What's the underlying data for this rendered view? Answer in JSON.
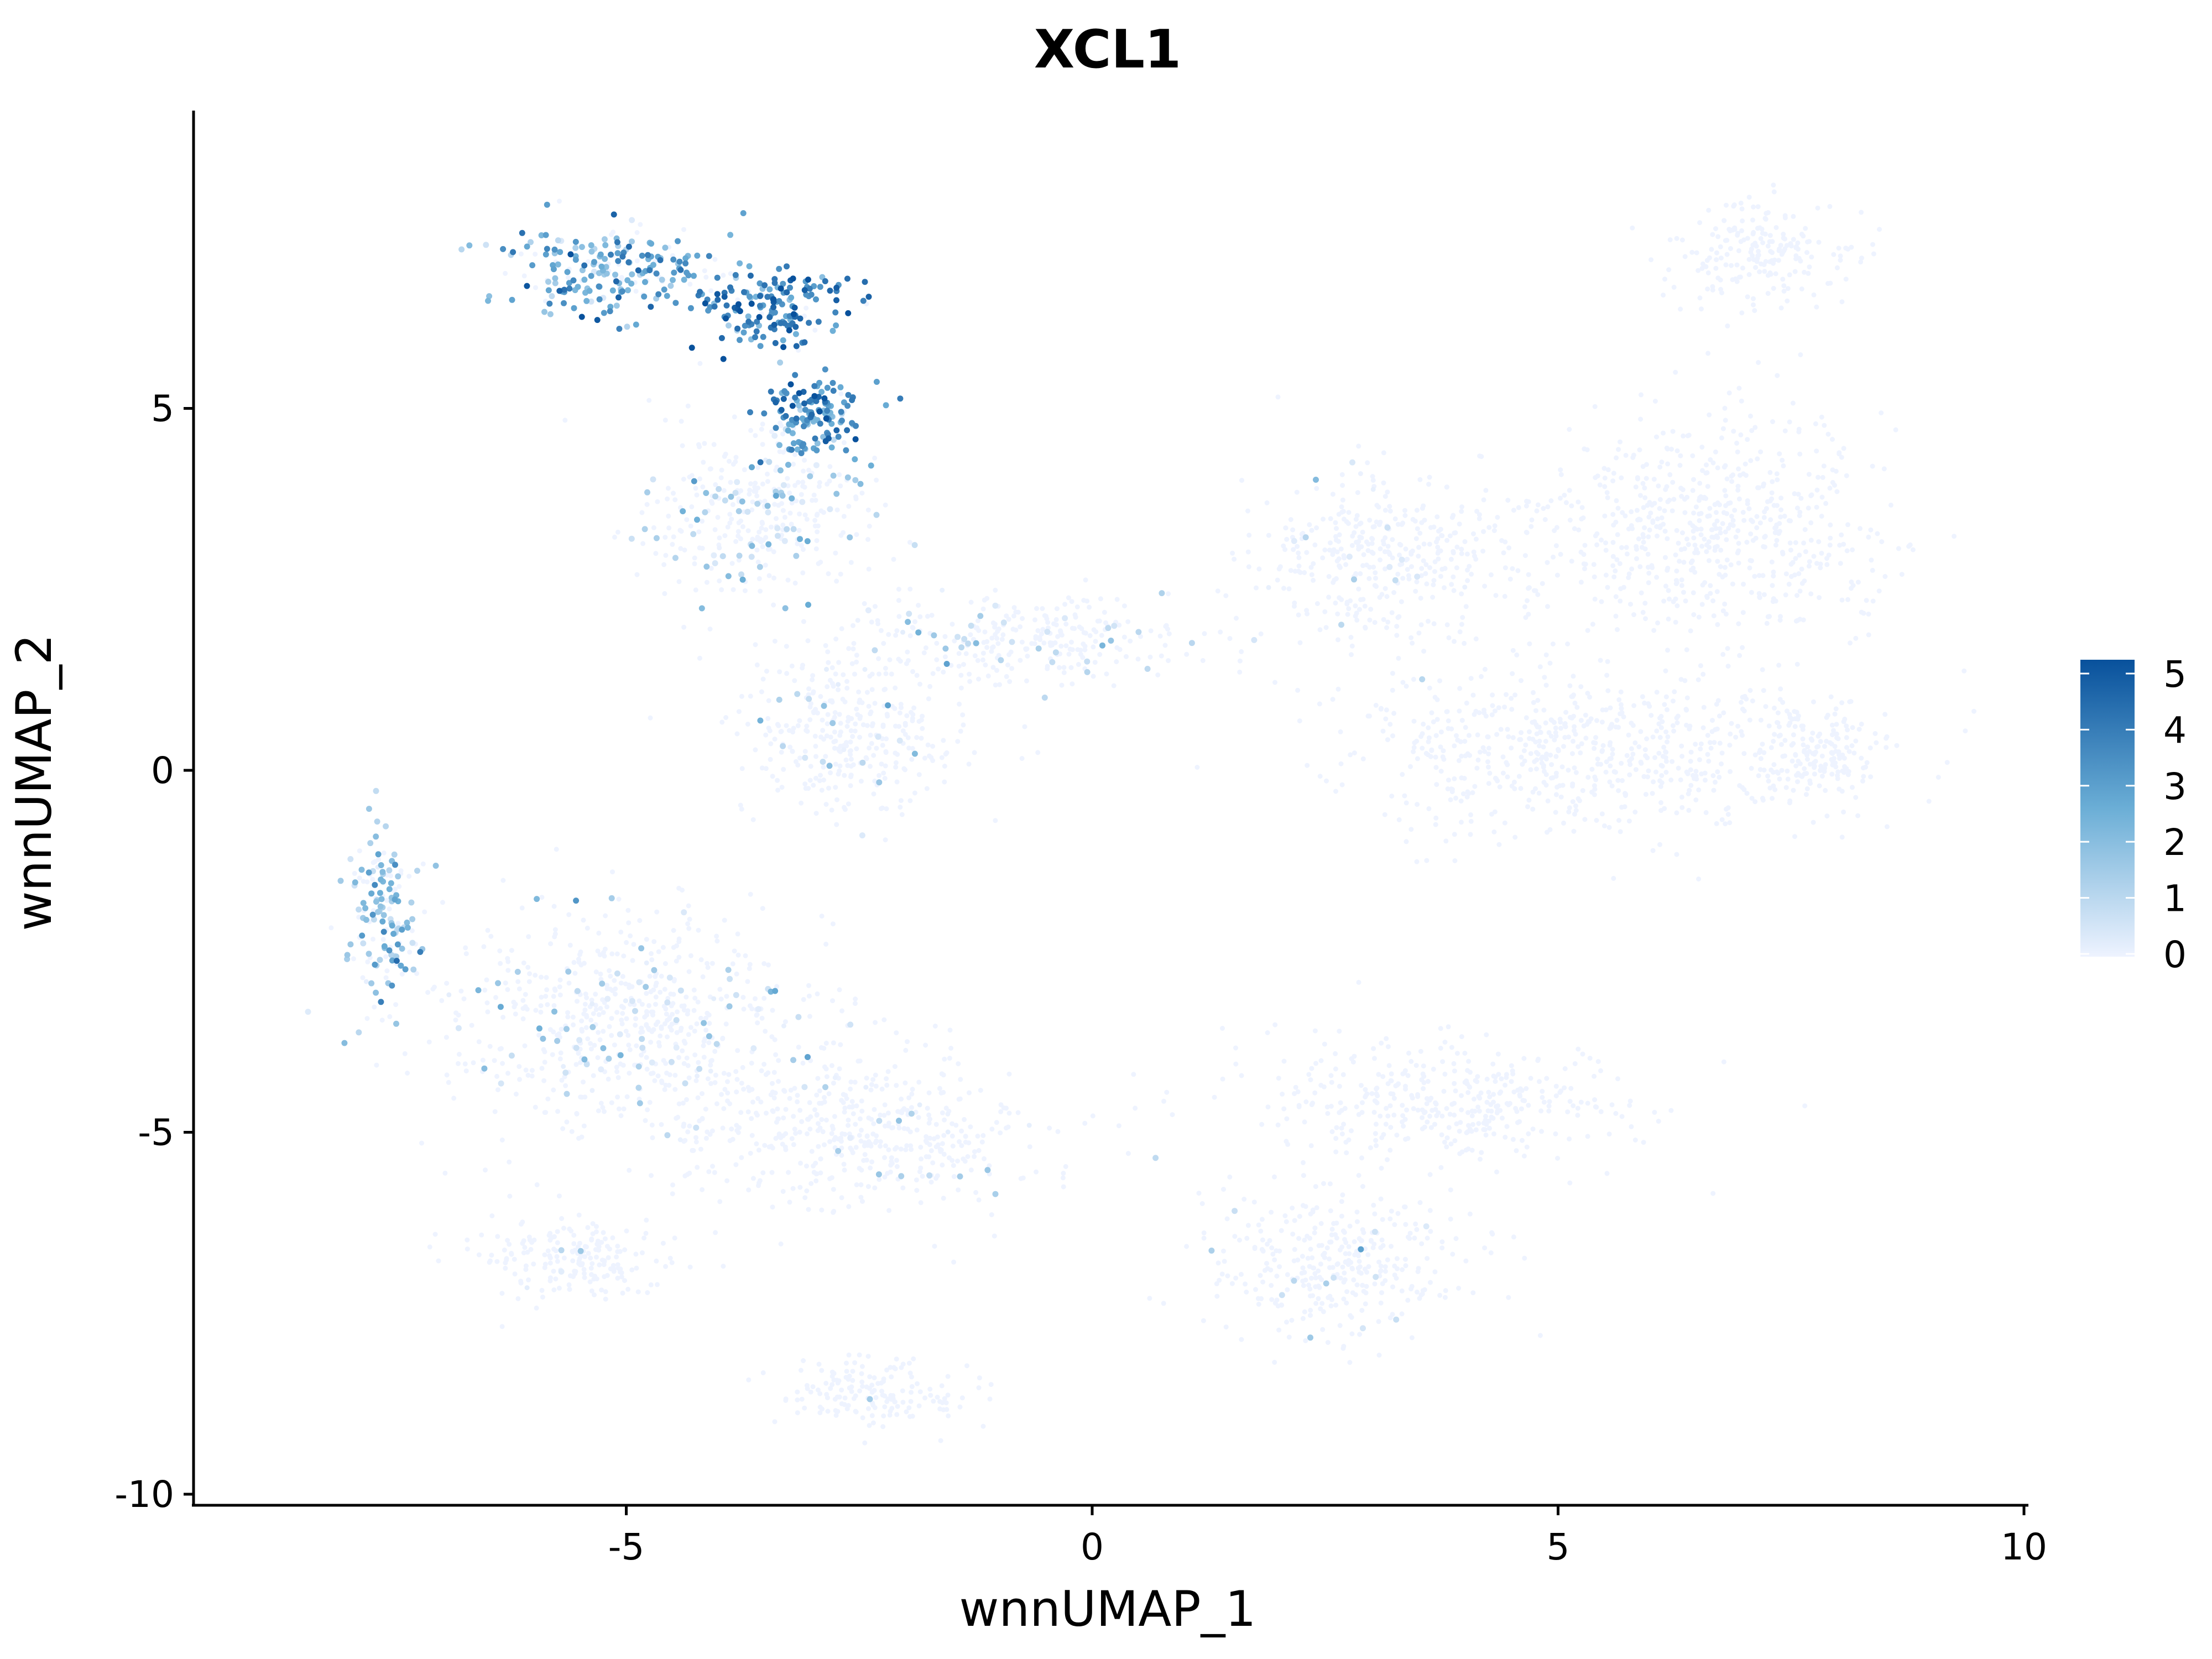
{
  "chart_data": {
    "type": "scatter",
    "title": "XCL1",
    "xlabel": "wnnUMAP_1",
    "ylabel": "wnnUMAP_2",
    "xlim": [
      -9.8,
      10
    ],
    "ylim": [
      -10.1,
      9.3
    ],
    "x_ticks": [
      {
        "value": -5,
        "label": "-5"
      },
      {
        "value": 0,
        "label": "0"
      },
      {
        "value": 5,
        "label": "5"
      },
      {
        "value": 10,
        "label": "10"
      }
    ],
    "y_ticks": [
      {
        "value": 5,
        "label": "5"
      },
      {
        "value": 0,
        "label": "0"
      },
      {
        "value": -5,
        "label": "-5"
      },
      {
        "value": -10,
        "label": "-10"
      }
    ],
    "grid": false,
    "legend": {
      "placement": "right",
      "type": "continuous colorbar",
      "min": 0,
      "max": 5,
      "ticks": [
        "0",
        "1",
        "2",
        "3",
        "4",
        "5"
      ],
      "low_color": "#EEF3FF",
      "high_color": "#08519C"
    },
    "colors": {
      "low": "#EEF3FF",
      "mid": "#6BAED6",
      "high": "#08519C"
    },
    "point_clouds": [
      {
        "region": "top-left cluster",
        "center": [
          -5.2,
          6.9
        ],
        "spread": [
          1.0,
          0.55
        ],
        "mean_expression": 2.6
      },
      {
        "region": "top-left ridge",
        "center": [
          -3.4,
          6.4
        ],
        "spread": [
          0.7,
          0.45
        ],
        "mean_expression": 3.6
      },
      {
        "region": "central streak",
        "center": [
          -3.0,
          4.9
        ],
        "spread": [
          0.45,
          0.5
        ],
        "mean_expression": 3.2
      },
      {
        "region": "left-middle branch",
        "center": [
          -3.6,
          3.6
        ],
        "spread": [
          1.0,
          1.0
        ],
        "mean_expression": 0.9
      },
      {
        "region": "diagonal trail",
        "center": [
          -0.8,
          1.8
        ],
        "spread": [
          1.7,
          0.5
        ],
        "mean_expression": 0.6
      },
      {
        "region": "lower-middle",
        "center": [
          -2.6,
          0.5
        ],
        "spread": [
          1.0,
          1.0
        ],
        "mean_expression": 0.3
      },
      {
        "region": "right cluster upper",
        "center": [
          6.6,
          3.3
        ],
        "spread": [
          1.6,
          1.3
        ],
        "mean_expression": 0.05
      },
      {
        "region": "right cluster top",
        "center": [
          7.2,
          7.1
        ],
        "spread": [
          0.8,
          0.6
        ],
        "mean_expression": 0.03
      },
      {
        "region": "right cluster lower",
        "center": [
          5.3,
          0.3
        ],
        "spread": [
          2.2,
          1.0
        ],
        "mean_expression": 0.03
      },
      {
        "region": "right small blob",
        "center": [
          7.8,
          0.2
        ],
        "spread": [
          0.5,
          0.6
        ],
        "mean_expression": 0.03
      },
      {
        "region": "bottom-left cluster",
        "center": [
          -5.0,
          -3.5
        ],
        "spread": [
          1.8,
          1.3
        ],
        "mean_expression": 0.5
      },
      {
        "region": "bottom-left edge",
        "center": [
          -7.6,
          -2.0
        ],
        "spread": [
          0.3,
          1.0
        ],
        "mean_expression": 1.9
      },
      {
        "region": "bottom-middle",
        "center": [
          -2.5,
          -5.0
        ],
        "spread": [
          1.6,
          0.9
        ],
        "mean_expression": 0.2
      },
      {
        "region": "bottom-right arm",
        "center": [
          3.8,
          -4.6
        ],
        "spread": [
          1.7,
          0.7
        ],
        "mean_expression": 0.05
      },
      {
        "region": "bottom-right lower",
        "center": [
          2.6,
          -6.8
        ],
        "spread": [
          1.3,
          0.8
        ],
        "mean_expression": 0.1
      },
      {
        "region": "bottom tail",
        "center": [
          -2.4,
          -8.6
        ],
        "spread": [
          0.8,
          0.4
        ],
        "mean_expression": 0.1
      },
      {
        "region": "bottom-left lower",
        "center": [
          -5.5,
          -6.7
        ],
        "spread": [
          0.9,
          0.5
        ],
        "mean_expression": 0.15
      },
      {
        "region": "middle right trail",
        "center": [
          3.2,
          3.0
        ],
        "spread": [
          1.2,
          1.0
        ],
        "mean_expression": 0.2
      }
    ]
  }
}
